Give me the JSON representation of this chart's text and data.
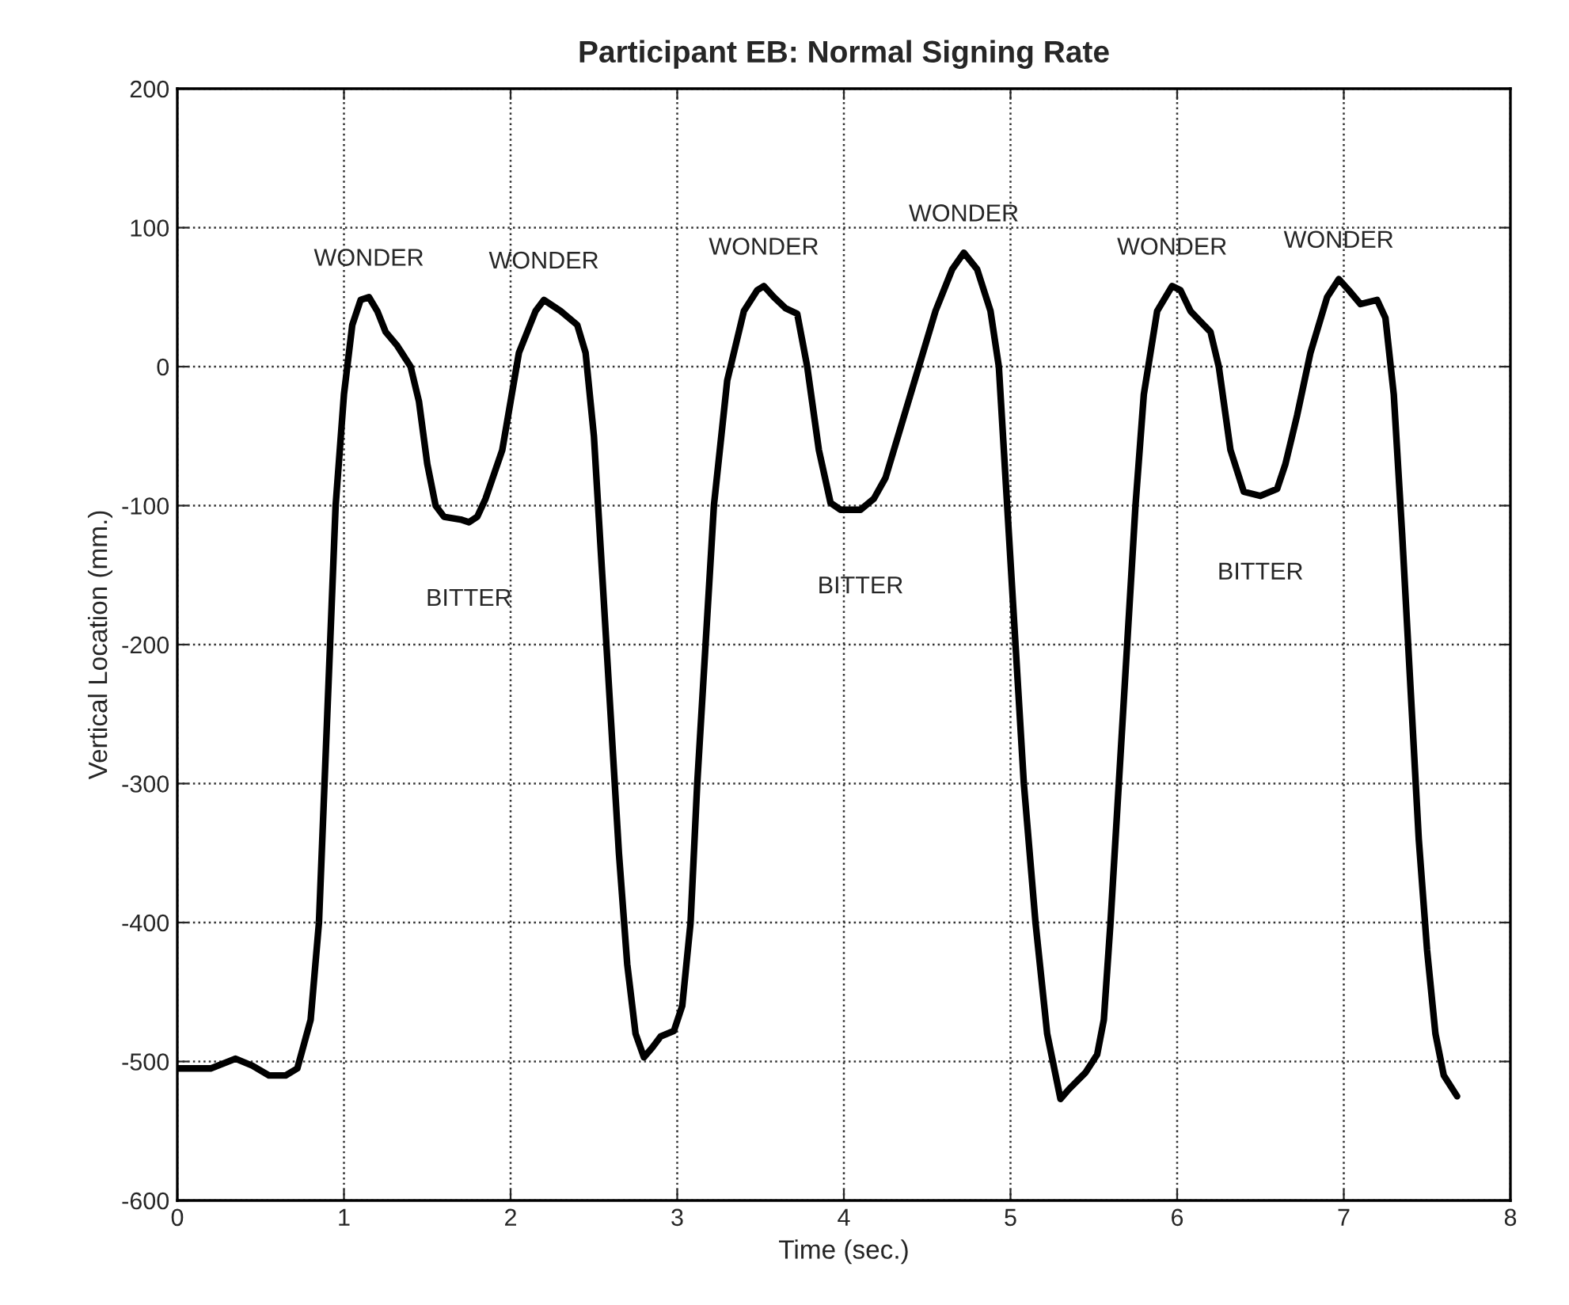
{
  "chart_data": {
    "type": "line",
    "title": "Participant EB: Normal Signing Rate",
    "xlabel": "Time (sec.)",
    "ylabel": "Vertical Location (mm.)",
    "xlim": [
      0,
      8
    ],
    "xticks": [
      0,
      1,
      2,
      3,
      4,
      5,
      6,
      7,
      8
    ],
    "ylim": [
      -600,
      200
    ],
    "yticks": [
      -600,
      -500,
      -400,
      -300,
      -200,
      -100,
      0,
      100,
      200
    ],
    "grid": true,
    "line_style": "solid",
    "marker": "none",
    "legend": false,
    "series": [
      {
        "color": "#000000",
        "x": [
          0,
          0.2,
          0.35,
          0.45,
          0.55,
          0.65,
          0.72,
          0.8,
          0.85,
          0.9,
          0.95,
          1.0,
          1.05,
          1.1,
          1.15,
          1.2,
          1.25,
          1.32,
          1.4,
          1.45,
          1.5,
          1.55,
          1.6,
          1.7,
          1.75,
          1.8,
          1.85,
          1.95,
          2.0,
          2.05,
          2.15,
          2.2,
          2.3,
          2.4,
          2.45,
          2.5,
          2.55,
          2.6,
          2.65,
          2.7,
          2.75,
          2.8,
          2.85,
          2.9,
          2.98,
          3.03,
          3.08,
          3.12,
          3.17,
          3.22,
          3.3,
          3.4,
          3.48,
          3.52,
          3.58,
          3.65,
          3.72,
          3.78,
          3.85,
          3.92,
          3.98,
          4.1,
          4.18,
          4.25,
          4.35,
          4.45,
          4.55,
          4.65,
          4.72,
          4.8,
          4.88,
          4.93,
          4.98,
          5.03,
          5.08,
          5.15,
          5.22,
          5.3,
          5.35,
          5.45,
          5.52,
          5.56,
          5.6,
          5.65,
          5.7,
          5.75,
          5.8,
          5.88,
          5.97,
          6.02,
          6.08,
          6.2,
          6.25,
          6.32,
          6.4,
          6.5,
          6.6,
          6.65,
          6.72,
          6.8,
          6.9,
          6.97,
          7.03,
          7.1,
          7.2,
          7.25,
          7.3,
          7.35,
          7.4,
          7.45,
          7.5,
          7.55,
          7.6,
          7.68
        ],
        "values": [
          -505,
          -505,
          -498,
          -503,
          -510,
          -510,
          -505,
          -470,
          -400,
          -250,
          -100,
          -20,
          30,
          48,
          50,
          40,
          25,
          15,
          0,
          -25,
          -70,
          -100,
          -108,
          -110,
          -112,
          -108,
          -95,
          -60,
          -25,
          10,
          40,
          48,
          40,
          30,
          10,
          -50,
          -150,
          -250,
          -350,
          -430,
          -480,
          -497,
          -490,
          -482,
          -478,
          -460,
          -400,
          -300,
          -200,
          -100,
          -10,
          40,
          55,
          58,
          50,
          42,
          38,
          0,
          -60,
          -98,
          -103,
          -103,
          -95,
          -80,
          -40,
          0,
          40,
          70,
          82,
          70,
          40,
          0,
          -100,
          -200,
          -300,
          -400,
          -480,
          -527,
          -520,
          -508,
          -495,
          -470,
          -400,
          -300,
          -200,
          -100,
          -20,
          40,
          58,
          55,
          40,
          25,
          0,
          -60,
          -90,
          -93,
          -88,
          -70,
          -35,
          10,
          50,
          63,
          55,
          45,
          48,
          35,
          -20,
          -120,
          -230,
          -340,
          -420,
          -480,
          -510,
          -525
        ]
      }
    ],
    "annotations": [
      {
        "text": "WONDER",
        "x": 1.15,
        "y": 50
      },
      {
        "text": "WONDER",
        "x": 2.2,
        "y": 48
      },
      {
        "text": "BITTER",
        "x": 1.75,
        "y": -112
      },
      {
        "text": "WONDER",
        "x": 3.52,
        "y": 58
      },
      {
        "text": "WONDER",
        "x": 4.72,
        "y": 82
      },
      {
        "text": "BITTER",
        "x": 4.1,
        "y": -103
      },
      {
        "text": "WONDER",
        "x": 5.97,
        "y": 58
      },
      {
        "text": "WONDER",
        "x": 6.97,
        "y": 63
      },
      {
        "text": "BITTER",
        "x": 6.5,
        "y": -93
      }
    ]
  }
}
